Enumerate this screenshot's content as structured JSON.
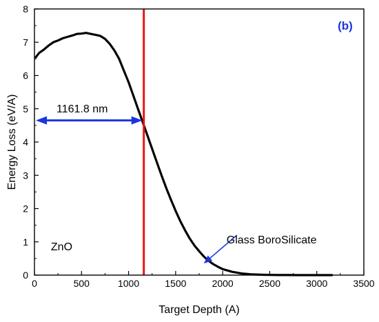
{
  "chart_data": {
    "type": "line",
    "panel_label": "(b)",
    "xlabel": "Target Depth (A)",
    "ylabel": "Energy Loss (eV/A)",
    "xlim": [
      0,
      3500
    ],
    "ylim": [
      0,
      8
    ],
    "xticks": [
      0,
      500,
      1000,
      1500,
      2000,
      2500,
      3000,
      3500
    ],
    "yticks": [
      0,
      1,
      2,
      3,
      4,
      5,
      6,
      7,
      8
    ],
    "grid": false,
    "series": [
      {
        "color": "#000000",
        "x": [
          15,
          50,
          100,
          150,
          200,
          250,
          300,
          350,
          400,
          450,
          500,
          550,
          600,
          650,
          700,
          750,
          800,
          850,
          900,
          950,
          1000,
          1050,
          1100,
          1150,
          1200,
          1250,
          1300,
          1350,
          1400,
          1450,
          1500,
          1550,
          1600,
          1650,
          1700,
          1750,
          1800,
          1850,
          1900,
          1950,
          2000,
          2100,
          2200,
          2300,
          2400,
          2500,
          2600,
          2700,
          2800,
          2900,
          3000,
          3100,
          3160
        ],
        "y": [
          6.55,
          6.68,
          6.78,
          6.9,
          7.0,
          7.05,
          7.12,
          7.16,
          7.2,
          7.25,
          7.26,
          7.28,
          7.25,
          7.22,
          7.19,
          7.1,
          6.95,
          6.75,
          6.5,
          6.15,
          5.8,
          5.4,
          5.0,
          4.6,
          4.2,
          3.8,
          3.4,
          3.0,
          2.62,
          2.27,
          1.93,
          1.62,
          1.35,
          1.1,
          0.89,
          0.72,
          0.56,
          0.43,
          0.33,
          0.25,
          0.18,
          0.1,
          0.05,
          0.025,
          0.012,
          0.006,
          0.003,
          0.002,
          0.001,
          0.0,
          0.0,
          0.0,
          0.0
        ]
      }
    ],
    "vertical_line": {
      "x": 1162,
      "color": "#ee1111"
    },
    "annotations": {
      "depth_arrow": {
        "text": "1161.8 nm",
        "x_from": 0,
        "x_to": 1162,
        "y": 4.65,
        "color": "#1a35e0"
      },
      "zno_label": {
        "text": "ZnO",
        "x": 175,
        "y": 0.75
      },
      "substrate_label": {
        "text": "Glass BoroSilicate",
        "x": 2520,
        "y": 0.95
      },
      "substrate_arrow": {
        "x_from": 2150,
        "y_from": 1.2,
        "x_to": 1800,
        "y_to": 0.35,
        "color": "#1a35e0"
      }
    },
    "panel_label_color": "#1a35e0"
  }
}
